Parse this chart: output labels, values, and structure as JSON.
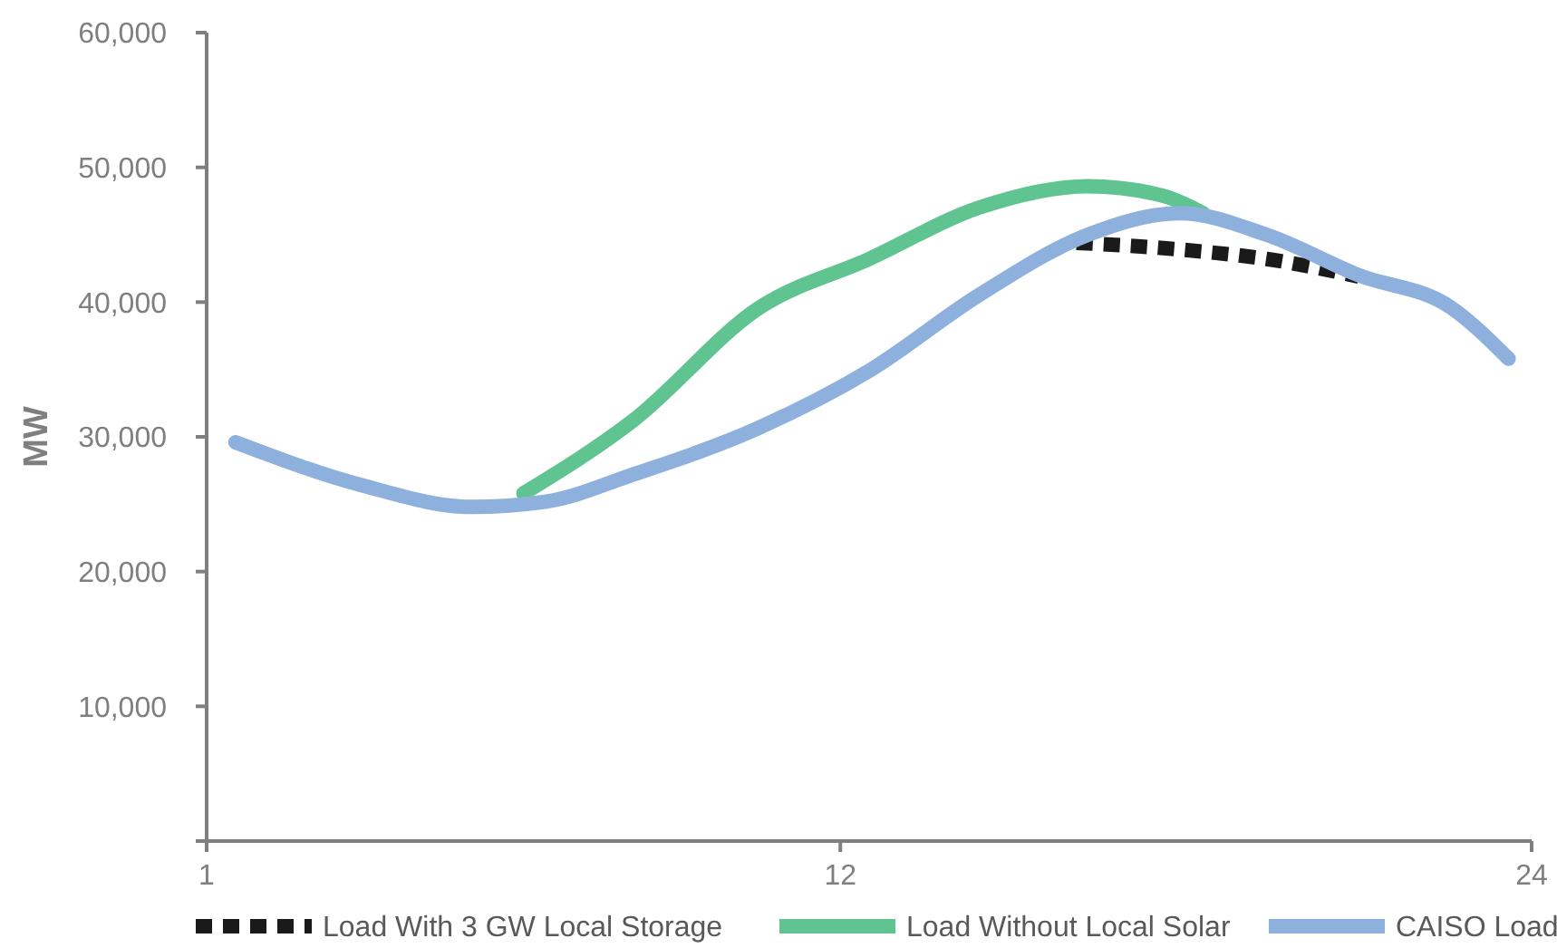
{
  "chart_data": {
    "type": "line",
    "ylabel": "MW",
    "xlim": [
      1,
      24
    ],
    "xticks": [
      1,
      12,
      24
    ],
    "ylim": [
      0,
      60000
    ],
    "yticks": [
      {
        "value": 0,
        "label": null
      },
      {
        "value": 10000,
        "label": "10,000"
      },
      {
        "value": 20000,
        "label": "20,000"
      },
      {
        "value": 30000,
        "label": "30,000"
      },
      {
        "value": 40000,
        "label": "40,000"
      },
      {
        "value": 50000,
        "label": "50,000"
      },
      {
        "value": 60000,
        "label": "60,000"
      }
    ],
    "grid": false,
    "legend": "bottom",
    "marker": "none",
    "series": [
      {
        "name": "Load With 3 GW Local Storage",
        "color": "#1a1a1a",
        "line_style": "dashed",
        "x": [
          16.1,
          17.9,
          19.4,
          21.0
        ],
        "values": [
          44400,
          43900,
          43200,
          41900
        ]
      },
      {
        "name": "Load Without Local Solar",
        "color": "#5fc48f",
        "line_style": "solid",
        "x": [
          6.5,
          8.4,
          10.6,
          12.5,
          14.4,
          16.3,
          17.6,
          18.3
        ],
        "values": [
          25800,
          31200,
          39600,
          43200,
          47000,
          48600,
          47900,
          46600
        ]
      },
      {
        "name": "CAISO Load",
        "color": "#8eb0dd",
        "line_style": "solid",
        "x": [
          1.5,
          3.7,
          5.6,
          6.9,
          8.4,
          10.6,
          12.5,
          14.4,
          16.3,
          17.9,
          19.4,
          21.0,
          22.6,
          23.6
        ],
        "values": [
          29600,
          26400,
          24800,
          25200,
          27200,
          30700,
          34900,
          40500,
          45000,
          46600,
          45000,
          42000,
          39600,
          35800
        ]
      }
    ]
  }
}
